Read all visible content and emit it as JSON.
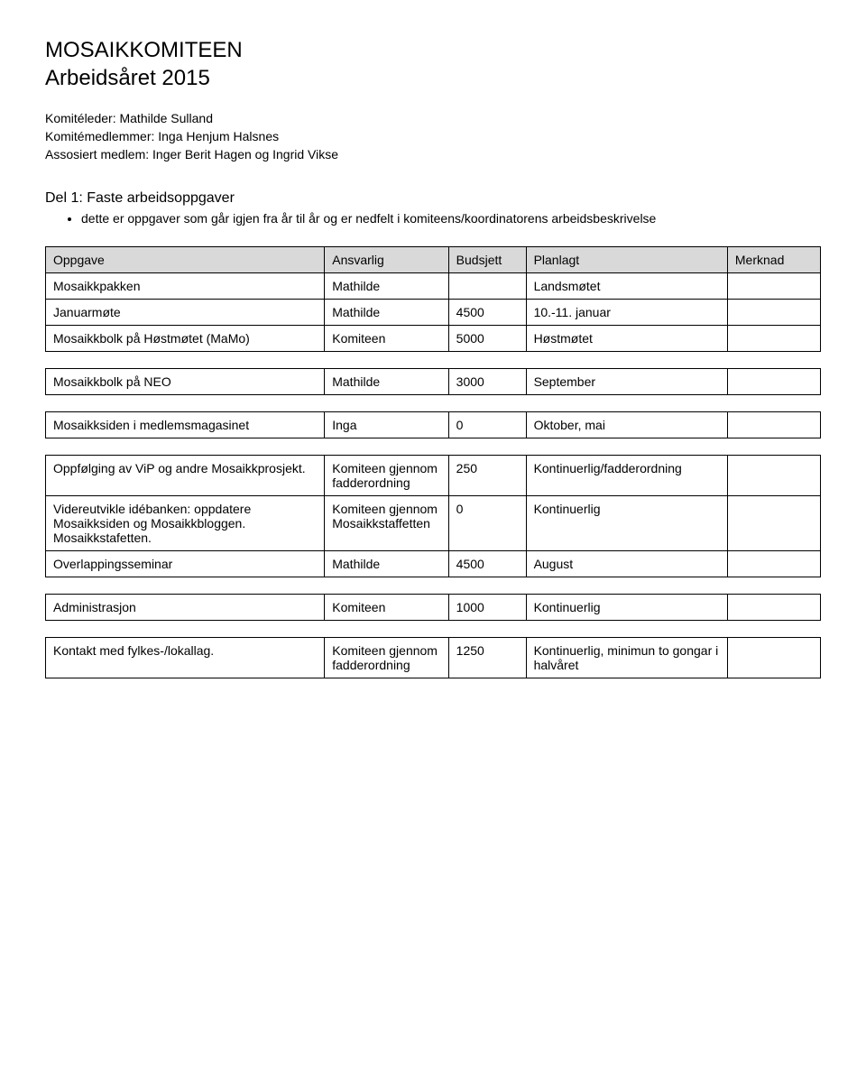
{
  "header": {
    "title_line1": "MOSAIKKOMITEEN",
    "title_line2": "Arbeidsåret 2015"
  },
  "intro": {
    "line1": "Komitéleder: Mathilde Sulland",
    "line2": "Komitémedlemmer: Inga Henjum Halsnes",
    "line3": "Assosiert medlem: Inger Berit Hagen og Ingrid Vikse"
  },
  "section": {
    "title": "Del 1: Faste arbeidsoppgaver",
    "bullet": "dette er oppgaver som går igjen fra år til år og er nedfelt i komiteens/koordinatorens arbeidsbeskrivelse"
  },
  "table": {
    "headers": [
      "Oppgave",
      "Ansvarlig",
      "Budsjett",
      "Planlagt",
      "Merknad"
    ],
    "groups": [
      {
        "rows": [
          [
            "Mosaikkpakken",
            "Mathilde",
            "",
            "Landsmøtet",
            ""
          ],
          [
            "Januarmøte",
            "Mathilde",
            "4500",
            "10.-11. januar",
            ""
          ],
          [
            "Mosaikkbolk på Høstmøtet (MaMo)",
            "Komiteen",
            "5000",
            "Høstmøtet",
            ""
          ]
        ]
      },
      {
        "rows": [
          [
            "Mosaikkbolk på NEO",
            "Mathilde",
            "3000",
            "September",
            ""
          ]
        ]
      },
      {
        "rows": [
          [
            "Mosaikksiden i medlemsmagasinet",
            "Inga",
            "0",
            "Oktober, mai",
            ""
          ]
        ]
      },
      {
        "rows": [
          [
            "Oppfølging av ViP og andre Mosaikkprosjekt.",
            "Komiteen gjennom fadderordning",
            "250",
            "Kontinuerlig/fadderordning",
            ""
          ],
          [
            "Videreutvikle idébanken: oppdatere Mosaikksiden og Mosaikkbloggen. Mosaikkstafetten.",
            "Komiteen gjennom Mosaikkstaffetten",
            "0",
            "Kontinuerlig",
            ""
          ],
          [
            "Overlappingsseminar",
            "Mathilde",
            "4500",
            "August",
            ""
          ]
        ]
      },
      {
        "rows": [
          [
            "Administrasjon",
            "Komiteen",
            "1000",
            "Kontinuerlig",
            ""
          ]
        ]
      },
      {
        "rows": [
          [
            "Kontakt med fylkes-/lokallag.",
            "Komiteen gjennom fadderordning",
            "1250",
            "Kontinuerlig, minimun to gongar i halvåret",
            ""
          ]
        ]
      }
    ]
  },
  "colors": {
    "header_bg": "#d9d9d9",
    "border": "#000000",
    "text": "#000000",
    "background": "#ffffff"
  }
}
